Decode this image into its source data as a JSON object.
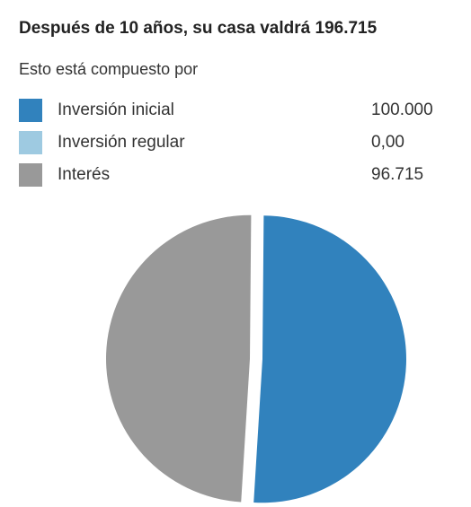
{
  "header": {
    "title": "Después de 10 años, su casa valdrá 196.715",
    "subtitle": "Esto está compuesto por"
  },
  "legend": {
    "items": [
      {
        "label": "Inversión inicial",
        "value": "100.000",
        "color": "#3182bd"
      },
      {
        "label": "Inversión regular",
        "value": "0,00",
        "color": "#9ecae1"
      },
      {
        "label": "Interés",
        "value": "96.715",
        "color": "#999999"
      }
    ]
  },
  "chart_data": {
    "type": "pie",
    "title": "Después de 10 años, su casa valdrá 196.715",
    "categories": [
      "Inversión inicial",
      "Inversión regular",
      "Interés"
    ],
    "values": [
      100000,
      0,
      96715
    ],
    "colors": [
      "#3182bd",
      "#9ecae1",
      "#999999"
    ],
    "legend": "top"
  }
}
